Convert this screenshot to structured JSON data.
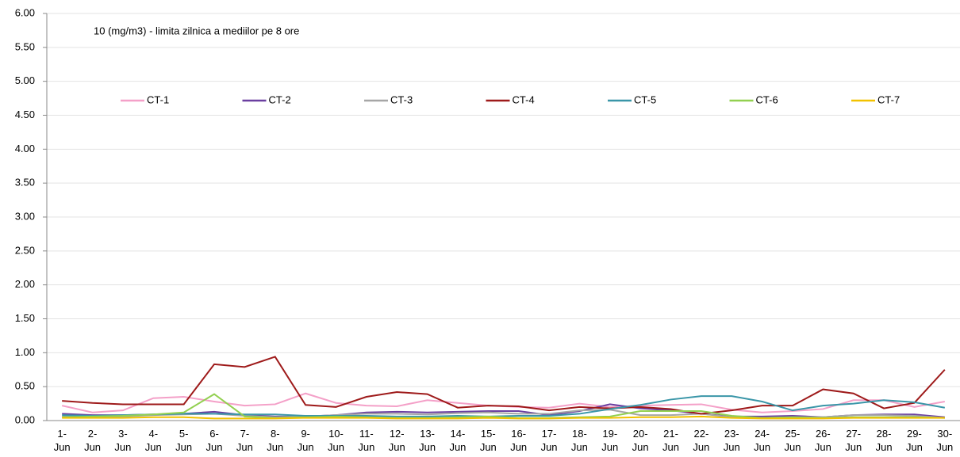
{
  "chart_data": {
    "type": "line",
    "annotation": "10 (mg/m3) - limita zilnica a mediilor pe 8 ore",
    "categories": [
      "1- Jun",
      "2- Jun",
      "3- Jun",
      "4- Jun",
      "5- Jun",
      "6- Jun",
      "7- Jun",
      "8- Jun",
      "9- Jun",
      "10- Jun",
      "11- Jun",
      "12- Jun",
      "13- Jun",
      "14- Jun",
      "15- Jun",
      "16- Jun",
      "17- Jun",
      "18- Jun",
      "19- Jun",
      "20- Jun",
      "21- Jun",
      "22- Jun",
      "23- Jun",
      "24- Jun",
      "25- Jun",
      "26- Jun",
      "27- Jun",
      "28- Jun",
      "29- Jun",
      "30- Jun"
    ],
    "series": [
      {
        "name": "CT-1",
        "color": "#f4a0c8",
        "values": [
          0.22,
          0.12,
          0.15,
          0.33,
          0.35,
          0.28,
          0.22,
          0.24,
          0.4,
          0.26,
          0.22,
          0.21,
          0.3,
          0.26,
          0.22,
          0.2,
          0.19,
          0.25,
          0.2,
          0.22,
          0.23,
          0.24,
          0.16,
          0.12,
          0.14,
          0.17,
          0.3,
          0.3,
          0.2,
          0.28
        ]
      },
      {
        "name": "CT-2",
        "color": "#6a3fa0",
        "values": [
          0.1,
          0.08,
          0.08,
          0.09,
          0.1,
          0.13,
          0.08,
          0.06,
          0.06,
          0.08,
          0.12,
          0.13,
          0.12,
          0.13,
          0.14,
          0.14,
          0.08,
          0.14,
          0.24,
          0.18,
          0.15,
          0.1,
          0.06,
          0.06,
          0.07,
          0.05,
          0.08,
          0.09,
          0.09,
          0.05
        ]
      },
      {
        "name": "CT-3",
        "color": "#a6a6a6",
        "values": [
          0.06,
          0.05,
          0.06,
          0.08,
          0.09,
          0.1,
          0.07,
          0.05,
          0.06,
          0.08,
          0.1,
          0.1,
          0.09,
          0.11,
          0.12,
          0.1,
          0.1,
          0.15,
          0.16,
          0.08,
          0.08,
          0.1,
          0.05,
          0.04,
          0.05,
          0.05,
          0.08,
          0.08,
          0.07,
          0.04
        ]
      },
      {
        "name": "CT-4",
        "color": "#9e1a1a",
        "values": [
          0.29,
          0.26,
          0.24,
          0.24,
          0.24,
          0.83,
          0.79,
          0.94,
          0.23,
          0.2,
          0.35,
          0.42,
          0.39,
          0.19,
          0.22,
          0.21,
          0.15,
          0.2,
          0.18,
          0.2,
          0.17,
          0.1,
          0.15,
          0.22,
          0.22,
          0.46,
          0.4,
          0.18,
          0.26,
          0.75
        ]
      },
      {
        "name": "CT-5",
        "color": "#3a96a8",
        "values": [
          0.08,
          0.07,
          0.08,
          0.09,
          0.1,
          0.1,
          0.09,
          0.09,
          0.07,
          0.07,
          0.07,
          0.06,
          0.06,
          0.07,
          0.06,
          0.07,
          0.07,
          0.1,
          0.17,
          0.23,
          0.31,
          0.36,
          0.36,
          0.28,
          0.15,
          0.22,
          0.25,
          0.3,
          0.27,
          0.19
        ]
      },
      {
        "name": "CT-6",
        "color": "#92d050",
        "values": [
          0.05,
          0.06,
          0.07,
          0.09,
          0.12,
          0.39,
          0.06,
          0.04,
          0.05,
          0.06,
          0.05,
          0.04,
          0.04,
          0.05,
          0.06,
          0.04,
          0.04,
          0.05,
          0.06,
          0.14,
          0.14,
          0.14,
          0.07,
          0.04,
          0.05,
          0.04,
          0.05,
          0.05,
          0.05,
          0.04
        ]
      },
      {
        "name": "CT-7",
        "color": "#f2c200",
        "values": [
          0.04,
          0.04,
          0.04,
          0.05,
          0.05,
          0.03,
          0.03,
          0.03,
          0.04,
          0.04,
          0.04,
          0.03,
          0.03,
          0.03,
          0.04,
          0.03,
          0.03,
          0.04,
          0.04,
          0.05,
          0.05,
          0.06,
          0.04,
          0.03,
          0.03,
          0.03,
          0.04,
          0.04,
          0.04,
          0.04
        ]
      }
    ],
    "ylim": [
      0,
      6
    ],
    "yticks": [
      {
        "value": 0,
        "label": "0.00"
      },
      {
        "value": 0.5,
        "label": "0.50"
      },
      {
        "value": 1,
        "label": "1.00"
      },
      {
        "value": 1.5,
        "label": "1.50"
      },
      {
        "value": 2,
        "label": "2.00"
      },
      {
        "value": 2.5,
        "label": "2.50"
      },
      {
        "value": 3,
        "label": "3.00"
      },
      {
        "value": 3.5,
        "label": "3.50"
      },
      {
        "value": 4,
        "label": "4.00"
      },
      {
        "value": 4.5,
        "label": "4.50"
      },
      {
        "value": 5,
        "label": "5.00"
      },
      {
        "value": 5.5,
        "label": "5.50"
      },
      {
        "value": 6,
        "label": "6.00"
      }
    ],
    "grid": true,
    "legend": "top"
  }
}
